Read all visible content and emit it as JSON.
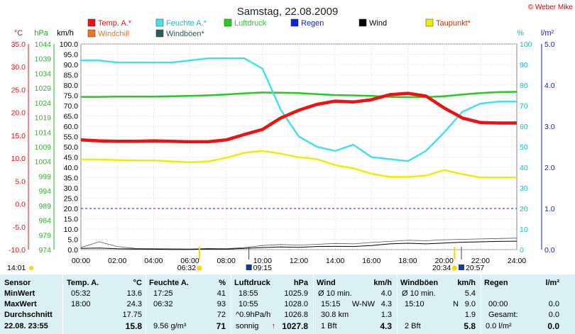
{
  "title": "Samstag, 22.08.2009",
  "copyright": "© Weber Mike",
  "colors": {
    "temp": "#ee1111",
    "humidity": "#44e0ee",
    "pressure": "#22cc22",
    "rain": "#1122dd",
    "wind": "#000000",
    "dewpoint": "#eeee00",
    "windchill": "#ee7722",
    "gusts": "#2a5a5a",
    "table_bg": "#d9f0f4"
  },
  "legend": [
    {
      "label": "Temp. A.*",
      "color": "#ee1111"
    },
    {
      "label": "Feuchte A.*",
      "color": "#44e0ee"
    },
    {
      "label": "Luftdruck",
      "color": "#22cc22"
    },
    {
      "label": "Regen",
      "color": "#1122dd"
    },
    {
      "label": "Wind",
      "color": "#000000"
    },
    {
      "label": "Taupunkt*",
      "color": "#eeee00"
    },
    {
      "label": "Windchill",
      "color": "#ee7722"
    },
    {
      "label": "Windböen*",
      "color": "#2a5a5a"
    }
  ],
  "axis_units": {
    "temp": "°C",
    "pressure": "hPa",
    "wind": "km/h",
    "humidity": "%",
    "rain": "l/m²"
  },
  "chart_data": {
    "type": "line",
    "x_ticks": [
      "00:00",
      "02:00",
      "04:00",
      "06:00",
      "08:00",
      "10:00",
      "12:00",
      "14:00",
      "16:00",
      "18:00",
      "20:00",
      "22:00",
      "24:00"
    ],
    "axes": {
      "wind": {
        "range": [
          0,
          100
        ],
        "ticks": [
          "0.0",
          "5.0",
          "10.0",
          "15.0",
          "20.0",
          "25.0",
          "30.0",
          "35.0",
          "40.0",
          "45.0",
          "50.0",
          "55.0",
          "60.0",
          "65.0",
          "70.0",
          "75.0",
          "80.0",
          "85.0",
          "90.0",
          "95.0",
          "100.0"
        ]
      },
      "temp": {
        "range": [
          -10,
          35
        ],
        "ticks": [
          "-10.0",
          "-5.0",
          "0.0",
          "5.0",
          "10.0",
          "15.0",
          "20.0",
          "25.0",
          "30.0",
          "35.0"
        ]
      },
      "pressure": {
        "range": [
          974,
          1044
        ],
        "ticks": [
          "974",
          "979",
          "984",
          "989",
          "994",
          "999",
          "1004",
          "1009",
          "1014",
          "1019",
          "1024",
          "1029",
          "1034",
          "1039",
          "1044"
        ]
      },
      "humidity": {
        "range": [
          0,
          100
        ],
        "ticks": [
          "0",
          "10",
          "20",
          "30",
          "40",
          "50",
          "60",
          "70",
          "80",
          "90",
          "100"
        ]
      },
      "rain": {
        "range": [
          0,
          5
        ],
        "ticks": [
          "0.0",
          "1.0",
          "2.0",
          "3.0",
          "4.0",
          "5.0"
        ]
      }
    },
    "x_hours": [
      0,
      1,
      2,
      3,
      4,
      5,
      6,
      7,
      8,
      9,
      10,
      11,
      12,
      13,
      14,
      15,
      16,
      17,
      18,
      19,
      20,
      21,
      22,
      23,
      24
    ],
    "series": [
      {
        "name": "Temp. A.*",
        "unit": "°C",
        "values": [
          14.0,
          13.8,
          13.7,
          13.7,
          13.8,
          13.7,
          13.6,
          13.6,
          14.0,
          15.2,
          16.3,
          18.8,
          20.5,
          21.8,
          22.5,
          22.3,
          22.8,
          23.9,
          24.2,
          23.6,
          21.0,
          18.8,
          17.8,
          17.7,
          17.7
        ]
      },
      {
        "name": "Feuchte A.*",
        "unit": "%",
        "values": [
          92,
          92,
          91,
          91,
          91,
          91,
          92,
          93,
          93,
          93,
          88,
          68,
          55,
          50,
          48,
          51,
          45,
          44,
          43,
          48,
          57,
          67,
          71,
          72,
          72
        ]
      },
      {
        "name": "Luftdruck",
        "unit": "hPa",
        "values": [
          1026.0,
          1026.0,
          1026.1,
          1026.1,
          1026.1,
          1026.2,
          1026.3,
          1026.5,
          1026.8,
          1027.2,
          1027.5,
          1027.4,
          1027.3,
          1026.9,
          1026.6,
          1026.5,
          1026.3,
          1026.0,
          1025.9,
          1025.9,
          1026.2,
          1026.8,
          1027.3,
          1027.6,
          1027.7
        ]
      },
      {
        "name": "Taupunkt*",
        "unit": "°C",
        "values": [
          9.7,
          9.7,
          9.6,
          9.5,
          9.5,
          9.3,
          9.1,
          9.3,
          10.1,
          11.2,
          11.6,
          11.0,
          10.2,
          9.8,
          8.5,
          7.8,
          6.6,
          5.9,
          5.9,
          6.2,
          7.4,
          6.5,
          5.8,
          5.8,
          5.8
        ]
      },
      {
        "name": "Wind",
        "unit": "km/h",
        "values": [
          0.6,
          0.8,
          0.4,
          0.3,
          0.2,
          0.1,
          0.1,
          0.3,
          0.2,
          0.6,
          1.0,
          1.3,
          1.1,
          1.5,
          1.6,
          1.5,
          2.0,
          2.8,
          3.1,
          2.8,
          3.2,
          3.6,
          3.8,
          4.0,
          4.1
        ]
      },
      {
        "name": "Windböen*",
        "unit": "km/h",
        "values": [
          1.0,
          3.8,
          1.5,
          0.6,
          0.5,
          0.4,
          0.3,
          0.6,
          0.5,
          1.0,
          2.0,
          2.5,
          2.2,
          2.6,
          3.0,
          2.8,
          3.5,
          4.0,
          4.5,
          4.3,
          4.8,
          5.0,
          5.2,
          5.4,
          5.6
        ]
      }
    ],
    "rain_reference": 1.0,
    "sun_markers": [
      {
        "label": "06:32",
        "hour": 6.53,
        "type": "sunrise"
      },
      {
        "label": "20:34",
        "hour": 20.57,
        "type": "sunset"
      }
    ],
    "moon_markers": [
      {
        "label": "09:15",
        "hour": 9.25,
        "type": "moonrise"
      },
      {
        "label": "20:57",
        "hour": 20.95,
        "type": "moonset"
      }
    ],
    "left_time": "14:01"
  },
  "table": {
    "labels": {
      "head": "Sensor",
      "min": "MinWert",
      "max": "MaxWert",
      "avg": "Durchschnitt",
      "current": "22.08. 23:55"
    },
    "temp": {
      "head": "Temp. A.",
      "unit": "°C",
      "min_t": "05:32",
      "min_v": "13.6",
      "max_t": "18:00",
      "max_v": "24.3",
      "avg": "17.75",
      "cur": "15.8"
    },
    "humidity": {
      "head": "Feuchte A.",
      "unit": "%",
      "min_t": "17:25",
      "min_v": "41",
      "max_t": "06:32",
      "max_v": "93",
      "avg": "72",
      "cur_note": "9.56 g/m³",
      "cur": "71"
    },
    "pressure": {
      "head": "Luftdruck",
      "unit": "hPa",
      "min_t": "18:55",
      "min_v": "1025.9",
      "max_t": "10:55",
      "max_v": "1028.0",
      "avg_note": "^0.9hPa/h",
      "avg": "1026.8",
      "cur_note": "sonnig",
      "cur_arrow": "↑",
      "cur": "1027.8"
    },
    "wind": {
      "head": "Wind",
      "unit": "km/h",
      "r1_l": "Ø 10 min.",
      "r1_v": "4.0",
      "r2_t": "15:15",
      "r2_d": "W-NW",
      "r2_v": "4.3",
      "r3_l": "30.8 km",
      "r3_v": "1.3",
      "r4_l": "1 Bft",
      "r4_v": "4.3"
    },
    "gusts": {
      "head": "Windböen",
      "unit": "km/h",
      "r1_l": "Ø 10 min.",
      "r1_v": "5.4",
      "r2_t": "15:10",
      "r2_d": "N",
      "r2_v": "9.0",
      "r3_v": "1.9",
      "r4_l": "2 Bft",
      "r4_v": "5.8"
    },
    "rain": {
      "head": "Regen",
      "unit": "l/m²",
      "r2_t": "00:00",
      "r2_v": "0.0",
      "r3_l": "Gesamt:",
      "r3_v": "0.0",
      "r4_l": "0.0 l/m²",
      "r4_v": "0.0"
    }
  }
}
